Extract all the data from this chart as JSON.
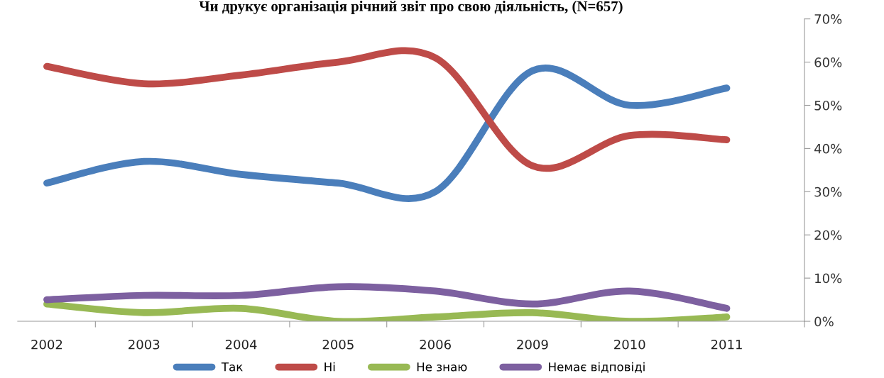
{
  "chart_data": {
    "type": "line",
    "title": "Чи друкує організація річний звіт про свою діяльність, (N=657)",
    "categories": [
      "2002",
      "2003",
      "2004",
      "2005",
      "2006",
      "2009",
      "2010",
      "2011"
    ],
    "series": [
      {
        "name": "Так",
        "color": "#4a7ebb",
        "values": [
          32,
          37,
          34,
          32,
          30,
          58,
          50,
          54
        ]
      },
      {
        "name": "Ні",
        "color": "#be4b48",
        "values": [
          59,
          55,
          57,
          60,
          61,
          36,
          43,
          42
        ]
      },
      {
        "name": "Не знаю",
        "color": "#98b954",
        "values": [
          4,
          2,
          3,
          0,
          1,
          2,
          0,
          1
        ]
      },
      {
        "name": "Немає відповіді",
        "color": "#7d60a0",
        "values": [
          5,
          6,
          6,
          8,
          7,
          4,
          7,
          3
        ]
      }
    ],
    "ylim": [
      0,
      70
    ],
    "yticks": [
      {
        "value": 0,
        "label": "0%"
      },
      {
        "value": 10,
        "label": "10%"
      },
      {
        "value": 20,
        "label": "20%"
      },
      {
        "value": 30,
        "label": "30%"
      },
      {
        "value": 40,
        "label": "40%"
      },
      {
        "value": 50,
        "label": "50%"
      },
      {
        "value": 60,
        "label": "60%"
      },
      {
        "value": 70,
        "label": "70%"
      }
    ],
    "grid": false,
    "legend": "bottom",
    "marker": "none",
    "line_style": "solid"
  }
}
